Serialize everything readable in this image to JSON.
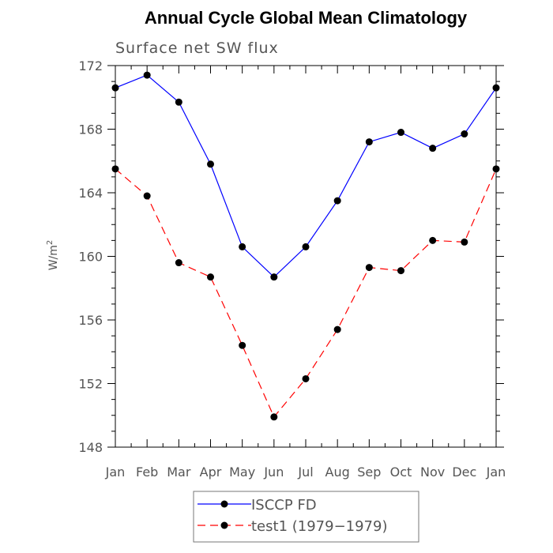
{
  "chart_data": {
    "type": "line",
    "title": "Annual Cycle Global Mean Climatology",
    "subtitle": "Surface net SW flux",
    "ylabel": "W/m",
    "ylabel_superscript": "2",
    "xlabel": "",
    "categories": [
      "Jan",
      "Feb",
      "Mar",
      "Apr",
      "May",
      "Jun",
      "Jul",
      "Aug",
      "Sep",
      "Oct",
      "Nov",
      "Dec",
      "Jan"
    ],
    "ylim": [
      148,
      172
    ],
    "yticks": [
      148,
      152,
      156,
      160,
      164,
      168,
      172
    ],
    "grid": false,
    "legend_position": "bottom",
    "series": [
      {
        "name": "ISCCP FD",
        "color": "#0000ff",
        "line_style": "solid",
        "marker": "filled-circle",
        "values": [
          170.6,
          171.4,
          169.7,
          165.8,
          160.6,
          158.7,
          160.6,
          163.5,
          167.2,
          167.8,
          166.8,
          167.7,
          170.6
        ]
      },
      {
        "name": "test1 (1979−1979)",
        "color": "#ff0000",
        "line_style": "dashed",
        "marker": "filled-circle",
        "values": [
          165.5,
          163.8,
          159.6,
          158.7,
          154.4,
          149.9,
          152.3,
          155.4,
          159.3,
          159.1,
          161.0,
          160.9,
          165.5
        ]
      }
    ]
  }
}
